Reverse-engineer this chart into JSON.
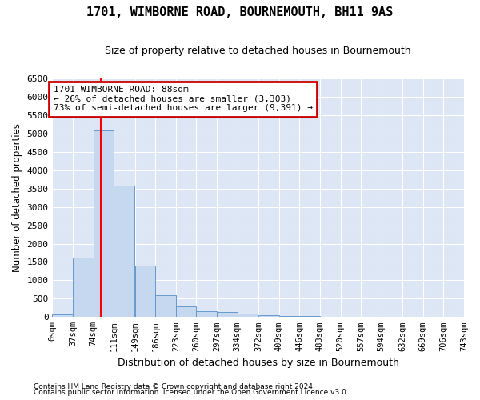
{
  "title": "1701, WIMBORNE ROAD, BOURNEMOUTH, BH11 9AS",
  "subtitle": "Size of property relative to detached houses in Bournemouth",
  "xlabel": "Distribution of detached houses by size in Bournemouth",
  "ylabel": "Number of detached properties",
  "bin_edges": [
    0,
    37,
    74,
    111,
    149,
    186,
    223,
    260,
    297,
    334,
    372,
    409,
    446,
    483,
    520,
    557,
    594,
    632,
    669,
    706,
    743
  ],
  "bar_heights": [
    70,
    1620,
    5080,
    3570,
    1410,
    600,
    290,
    155,
    130,
    95,
    55,
    35,
    25,
    15,
    10,
    5,
    5,
    2,
    1,
    1
  ],
  "bar_color": "#c5d8f0",
  "bar_edgecolor": "#6699cc",
  "background_color": "#dce6f5",
  "grid_color": "#ffffff",
  "red_line_x": 88,
  "annotation_text": "1701 WIMBORNE ROAD: 88sqm\n← 26% of detached houses are smaller (3,303)\n73% of semi-detached houses are larger (9,391) →",
  "annotation_box_edgecolor": "#cc0000",
  "ylim": [
    0,
    6500
  ],
  "yticks": [
    0,
    500,
    1000,
    1500,
    2000,
    2500,
    3000,
    3500,
    4000,
    4500,
    5000,
    5500,
    6000,
    6500
  ],
  "footnote1": "Contains HM Land Registry data © Crown copyright and database right 2024.",
  "footnote2": "Contains public sector information licensed under the Open Government Licence v3.0."
}
